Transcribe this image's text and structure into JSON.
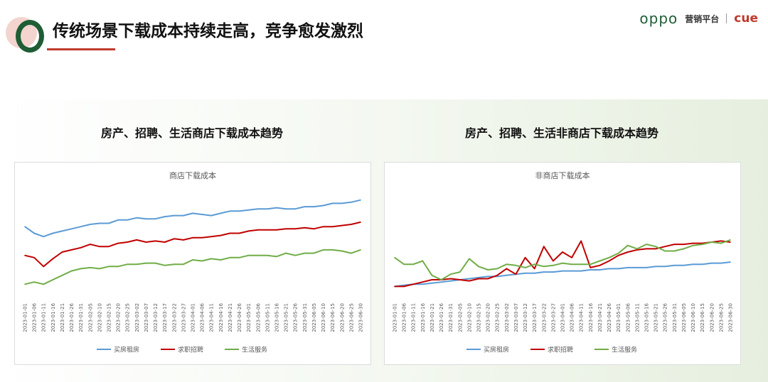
{
  "header": {
    "title": "传统场景下载成本持续走高，竞争愈发激烈",
    "brand_oppo": "oppo",
    "brand_platform": "营销平台",
    "brand_cue": "cue"
  },
  "sections": [
    {
      "heading": "房产、招聘、生活商店下载成本趋势"
    },
    {
      "heading": "房产、招聘、生活非商店下载成本趋势"
    }
  ],
  "colors": {
    "blue": "#5b9bd5",
    "red": "#c00000",
    "green": "#70ad47"
  },
  "chart_data": [
    {
      "type": "line",
      "title": "商店下载成本",
      "x": [
        "2023-01-01",
        "2023-01-06",
        "2023-01-11",
        "2023-01-16",
        "2023-01-21",
        "2023-01-26",
        "2023-01-31",
        "2023-02-05",
        "2023-02-10",
        "2023-02-15",
        "2023-02-20",
        "2023-02-25",
        "2023-03-02",
        "2023-03-07",
        "2023-03-12",
        "2023-03-17",
        "2023-03-22",
        "2023-03-27",
        "2023-04-01",
        "2023-04-06",
        "2023-04-11",
        "2023-04-16",
        "2023-04-21",
        "2023-04-26",
        "2023-05-01",
        "2023-05-06",
        "2023-05-11",
        "2023-05-16",
        "2023-05-21",
        "2023-05-26",
        "2023-05-31",
        "2023-06-05",
        "2023-06-10",
        "2023-06-15",
        "2023-06-20",
        "2023-06-25",
        "2023-06-30"
      ],
      "ylim": [
        0,
        100
      ],
      "grid": false,
      "legend": "bottom",
      "series": [
        {
          "name": "买房租房",
          "color": "#5b9bd5",
          "values": [
            64,
            58,
            55,
            58,
            60,
            62,
            64,
            66,
            67,
            67,
            70,
            70,
            72,
            71,
            71,
            73,
            74,
            74,
            76,
            75,
            74,
            76,
            78,
            78,
            79,
            80,
            80,
            81,
            80,
            80,
            82,
            82,
            83,
            85,
            85,
            86,
            88
          ]
        },
        {
          "name": "求职招聘",
          "color": "#c00000",
          "values": [
            38,
            36,
            28,
            35,
            41,
            43,
            45,
            48,
            46,
            46,
            49,
            50,
            52,
            50,
            51,
            50,
            53,
            52,
            54,
            54,
            55,
            56,
            58,
            58,
            60,
            61,
            61,
            61,
            62,
            62,
            63,
            62,
            64,
            64,
            65,
            66,
            68
          ]
        },
        {
          "name": "生活服务",
          "color": "#70ad47",
          "values": [
            12,
            14,
            12,
            16,
            20,
            24,
            26,
            27,
            26,
            28,
            28,
            30,
            30,
            31,
            31,
            29,
            30,
            30,
            34,
            33,
            35,
            34,
            36,
            36,
            38,
            38,
            38,
            37,
            40,
            38,
            40,
            40,
            43,
            43,
            42,
            40,
            43
          ]
        }
      ]
    },
    {
      "type": "line",
      "title": "非商店下载成本",
      "x": [
        "2023-01-01",
        "2023-01-06",
        "2023-01-11",
        "2023-01-16",
        "2023-01-21",
        "2023-01-26",
        "2023-01-31",
        "2023-02-05",
        "2023-02-10",
        "2023-02-15",
        "2023-02-20",
        "2023-02-25",
        "2023-03-02",
        "2023-03-07",
        "2023-03-12",
        "2023-03-17",
        "2023-03-22",
        "2023-03-27",
        "2023-04-01",
        "2023-04-06",
        "2023-04-11",
        "2023-04-16",
        "2023-04-21",
        "2023-04-26",
        "2023-05-01",
        "2023-05-06",
        "2023-05-11",
        "2023-05-16",
        "2023-05-21",
        "2023-05-26",
        "2023-05-31",
        "2023-06-05",
        "2023-06-10",
        "2023-06-15",
        "2023-06-20",
        "2023-06-25",
        "2023-06-30"
      ],
      "ylim": [
        0,
        100
      ],
      "grid": false,
      "legend": "bottom",
      "series": [
        {
          "name": "买房租房",
          "color": "#5b9bd5",
          "values": [
            10,
            11,
            12,
            12,
            13,
            14,
            15,
            16,
            17,
            18,
            19,
            19,
            20,
            21,
            22,
            22,
            23,
            23,
            24,
            24,
            24,
            25,
            25,
            26,
            26,
            27,
            27,
            27,
            28,
            28,
            29,
            29,
            30,
            30,
            31,
            31,
            32
          ]
        },
        {
          "name": "求职招聘",
          "color": "#c00000",
          "values": [
            10,
            10,
            12,
            14,
            16,
            16,
            17,
            16,
            15,
            17,
            17,
            20,
            26,
            21,
            36,
            26,
            46,
            33,
            41,
            36,
            51,
            27,
            29,
            33,
            38,
            41,
            43,
            44,
            44,
            46,
            48,
            48,
            49,
            49,
            50,
            51,
            50
          ]
        },
        {
          "name": "生活服务",
          "color": "#70ad47",
          "values": [
            36,
            30,
            30,
            33,
            20,
            16,
            21,
            23,
            35,
            28,
            25,
            26,
            30,
            29,
            27,
            30,
            28,
            29,
            31,
            30,
            30,
            30,
            33,
            36,
            40,
            47,
            44,
            48,
            46,
            42,
            42,
            44,
            47,
            48,
            50,
            49,
            52
          ]
        }
      ]
    }
  ]
}
